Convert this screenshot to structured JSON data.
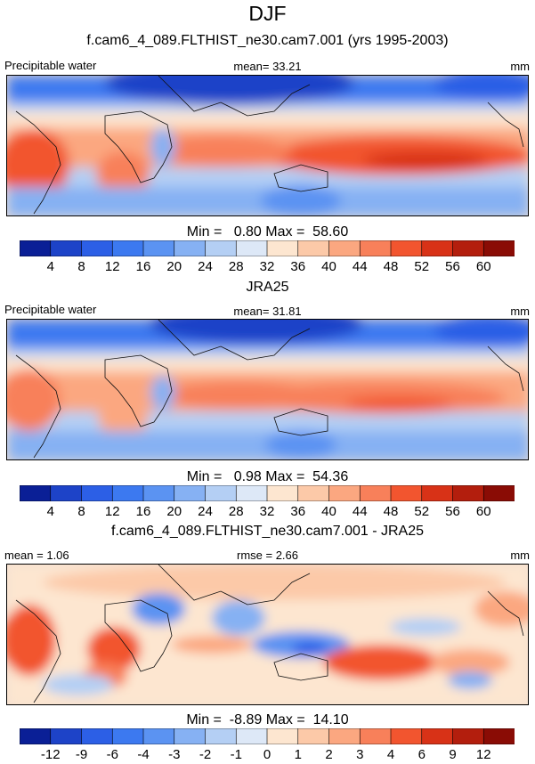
{
  "title": "DJF",
  "chart_data": [
    {
      "type": "heatmap",
      "title": "f.cam6_4_089.FLTHIST_ne30.cam7.001 (yrs 1995-2003)",
      "left_label": "Precipitable water",
      "center_label": "mean=  33.21",
      "right_label": "mm",
      "mean": 33.21,
      "min": 0.8,
      "max": 58.6,
      "minmax_text": "Min =   0.80 Max =  58.60",
      "colorbar": {
        "ticks": [
          "4",
          "8",
          "12",
          "16",
          "20",
          "24",
          "28",
          "32",
          "36",
          "40",
          "44",
          "48",
          "52",
          "56",
          "60"
        ],
        "colors": [
          "#0a1f96",
          "#1d43c8",
          "#2c5fe6",
          "#3c79f0",
          "#5b93f2",
          "#86b1f3",
          "#b4cff4",
          "#dde8f7",
          "#fde6d0",
          "#fcc9a8",
          "#fba780",
          "#f8805a",
          "#f2552f",
          "#d83217",
          "#b31e0d",
          "#8a0c05"
        ]
      }
    },
    {
      "type": "heatmap",
      "title": "JRA25",
      "left_label": "Precipitable water",
      "center_label": "mean=  31.81",
      "right_label": "mm",
      "mean": 31.81,
      "min": 0.98,
      "max": 54.36,
      "minmax_text": "Min =   0.98 Max =  54.36",
      "colorbar": {
        "ticks": [
          "4",
          "8",
          "12",
          "16",
          "20",
          "24",
          "28",
          "32",
          "36",
          "40",
          "44",
          "48",
          "52",
          "56",
          "60"
        ],
        "colors": [
          "#0a1f96",
          "#1d43c8",
          "#2c5fe6",
          "#3c79f0",
          "#5b93f2",
          "#86b1f3",
          "#b4cff4",
          "#dde8f7",
          "#fde6d0",
          "#fcc9a8",
          "#fba780",
          "#f8805a",
          "#f2552f",
          "#d83217",
          "#b31e0d",
          "#8a0c05"
        ]
      }
    },
    {
      "type": "heatmap",
      "title": "f.cam6_4_089.FLTHIST_ne30.cam7.001 - JRA25",
      "left_label": "mean =   1.06",
      "center_label": "rmse =   2.66",
      "right_label": "mm",
      "mean": 1.06,
      "rmse": 2.66,
      "min": -8.89,
      "max": 14.1,
      "minmax_text": "Min =  -8.89 Max =  14.10",
      "colorbar": {
        "ticks": [
          "-12",
          "-9",
          "-6",
          "-4",
          "-3",
          "-2",
          "-1",
          "0",
          "1",
          "2",
          "3",
          "4",
          "6",
          "9",
          "12"
        ],
        "colors": [
          "#0a1f96",
          "#1d43c8",
          "#2c5fe6",
          "#3c79f0",
          "#5b93f2",
          "#86b1f3",
          "#b4cff4",
          "#dde8f7",
          "#fde6d0",
          "#fcc9a8",
          "#fba780",
          "#f8805a",
          "#f2552f",
          "#d83217",
          "#b31e0d",
          "#8a0c05"
        ]
      }
    }
  ]
}
